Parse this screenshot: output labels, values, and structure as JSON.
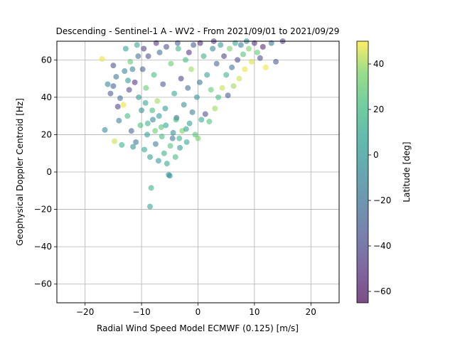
{
  "chart_data": {
    "type": "scatter",
    "title": "Descending - Sentinel-1 A - WV2 - From 2021/09/01 to 2021/09/29",
    "xlabel": "Radial Wind Speed Model ECMWF (0.125) [m/s]",
    "ylabel": "Geophysical Doppler Centroid [Hz]",
    "xlim": [
      -25,
      25
    ],
    "ylim": [
      -70,
      70
    ],
    "xticks": [
      -20,
      -10,
      0,
      10,
      20
    ],
    "xtick_labels": [
      "−20",
      "−10",
      "0",
      "10",
      "20"
    ],
    "yticks": [
      -60,
      -40,
      -20,
      0,
      20,
      40,
      60
    ],
    "ytick_labels": [
      "−60",
      "−40",
      "−20",
      "0",
      "20",
      "40",
      "60"
    ],
    "grid": true,
    "marker_alpha": 0.55,
    "colormap": "viridis",
    "colorbar": {
      "label": "Latitude [deg]",
      "range": [
        -65,
        50
      ],
      "ticks": [
        40,
        20,
        0,
        -20,
        -40,
        -60
      ],
      "tick_labels": [
        "40",
        "20",
        "0",
        "−20",
        "−40",
        "−60"
      ]
    },
    "points_description_note": "",
    "series": [
      {
        "points": [
          [
            -17,
            60.5,
            48
          ],
          [
            -16.5,
            22.5,
            -8
          ],
          [
            -16,
            47,
            -10
          ],
          [
            -15.5,
            42,
            -35
          ],
          [
            -15,
            57,
            -38
          ],
          [
            -15,
            46,
            -30
          ],
          [
            -14.8,
            16.5,
            45
          ],
          [
            -14.5,
            51,
            -20
          ],
          [
            -14.2,
            35,
            -44
          ],
          [
            -14,
            27.5,
            -15
          ],
          [
            -13.8,
            39.5,
            -25
          ],
          [
            -13.5,
            14.5,
            15
          ],
          [
            -13.2,
            36,
            48
          ],
          [
            -13,
            54,
            -12
          ],
          [
            -12.8,
            66,
            5
          ],
          [
            -12.5,
            30,
            20
          ],
          [
            -12.2,
            44,
            -42
          ],
          [
            -12,
            59,
            30
          ],
          [
            -11.8,
            22,
            -30
          ],
          [
            -11.5,
            13.5,
            -5
          ],
          [
            -11.2,
            48,
            -50
          ],
          [
            -11,
            16,
            -20
          ],
          [
            -10.8,
            68,
            10
          ],
          [
            -10.5,
            40,
            0
          ],
          [
            -10.2,
            25,
            22
          ],
          [
            -10,
            33,
            -5
          ],
          [
            -9.8,
            55,
            -30
          ],
          [
            -9.5,
            12,
            10
          ],
          [
            -9.2,
            45,
            30
          ],
          [
            -9,
            20,
            5
          ],
          [
            -8.8,
            62,
            -40
          ],
          [
            -8.5,
            8,
            5
          ],
          [
            -8.3,
            -8.5,
            15
          ],
          [
            -8.5,
            -18.5,
            8
          ],
          [
            -8,
            28,
            -10
          ],
          [
            -7.8,
            52,
            20
          ],
          [
            -7.5,
            15,
            -15
          ],
          [
            -7.2,
            38,
            40
          ],
          [
            -7,
            6,
            0
          ],
          [
            -6.8,
            64,
            -25
          ],
          [
            -6.5,
            24,
            25
          ],
          [
            -6.2,
            47,
            -35
          ],
          [
            -6,
            10,
            15
          ],
          [
            -5.8,
            34,
            0
          ],
          [
            -5.5,
            4.5,
            10
          ],
          [
            -5.2,
            -1.5,
            5
          ],
          [
            -5,
            -2,
            -5
          ],
          [
            -4.8,
            58,
            30
          ],
          [
            -4.5,
            18,
            -20
          ],
          [
            -4.2,
            42,
            10
          ],
          [
            -4,
            8,
            20
          ],
          [
            -3.8,
            29,
            -30
          ],
          [
            -3.5,
            66,
            15
          ],
          [
            -3.2,
            13,
            0
          ],
          [
            -3,
            50,
            -45
          ],
          [
            -2.8,
            22,
            35
          ],
          [
            -2.5,
            36,
            -5
          ],
          [
            -2.2,
            60,
            20
          ],
          [
            -2,
            16,
            10
          ],
          [
            -1.8,
            45,
            -25
          ],
          [
            -1.5,
            26,
            5
          ],
          [
            -1.2,
            55,
            40
          ],
          [
            -1,
            32,
            -15
          ],
          [
            -0.8,
            68,
            -35
          ],
          [
            -0.5,
            20,
            25
          ],
          [
            -0.2,
            40,
            0
          ],
          [
            0,
            18,
            35
          ],
          [
            0.3,
            48,
            -20
          ],
          [
            0.6,
            28,
            10
          ],
          [
            1,
            62,
            15
          ],
          [
            1.3,
            31,
            -40
          ],
          [
            1.6,
            52,
            5
          ],
          [
            2,
            27,
            25
          ],
          [
            2.3,
            44,
            30
          ],
          [
            2.6,
            66,
            -10
          ],
          [
            3,
            34,
            40
          ],
          [
            3.3,
            58,
            -30
          ],
          [
            3.6,
            40,
            20
          ],
          [
            4,
            68,
            0
          ],
          [
            4.3,
            45,
            45
          ],
          [
            4.6,
            62,
            -45
          ],
          [
            5,
            52,
            15
          ],
          [
            5.3,
            41,
            -35
          ],
          [
            5.6,
            66,
            35
          ],
          [
            6,
            56,
            -20
          ],
          [
            6.3,
            46,
            40
          ],
          [
            6.6,
            69,
            10
          ],
          [
            7,
            60,
            -40
          ],
          [
            7.3,
            50,
            45
          ],
          [
            7.6,
            68,
            -15
          ],
          [
            8,
            63,
            25
          ],
          [
            8.3,
            55,
            48
          ],
          [
            8.6,
            70,
            -5
          ],
          [
            9,
            66,
            35
          ],
          [
            9.5,
            59,
            46
          ],
          [
            10,
            69,
            -50
          ],
          [
            10.5,
            64,
            30
          ],
          [
            11,
            61,
            -40
          ],
          [
            11.5,
            67,
            -55
          ],
          [
            12,
            56,
            48
          ],
          [
            13,
            69,
            -20
          ],
          [
            13.8,
            59,
            -35
          ],
          [
            15,
            70,
            -45
          ],
          [
            -9.6,
            66,
            -45
          ],
          [
            -7.4,
            69,
            -50
          ],
          [
            -3.6,
            69,
            -30
          ],
          [
            0.4,
            69,
            -55
          ],
          [
            2.8,
            70,
            -48
          ],
          [
            -1.6,
            64,
            -50
          ],
          [
            -5.6,
            67,
            -40
          ],
          [
            -10.6,
            62,
            -20
          ],
          [
            -11.6,
            55,
            -10
          ],
          [
            -12.4,
            49,
            0
          ],
          [
            -9.3,
            37,
            10
          ],
          [
            -8.1,
            33,
            20
          ],
          [
            -6.9,
            30,
            0
          ],
          [
            -5.7,
            25,
            10
          ],
          [
            -4.4,
            21,
            -5
          ],
          [
            -3.3,
            18,
            15
          ],
          [
            -2.1,
            23,
            5
          ],
          [
            -7.6,
            22,
            30
          ],
          [
            -6.4,
            19,
            20
          ],
          [
            -8.9,
            26,
            15
          ],
          [
            -4.9,
            14,
            25
          ],
          [
            -3.9,
            28,
            20
          ]
        ]
      }
    ]
  }
}
